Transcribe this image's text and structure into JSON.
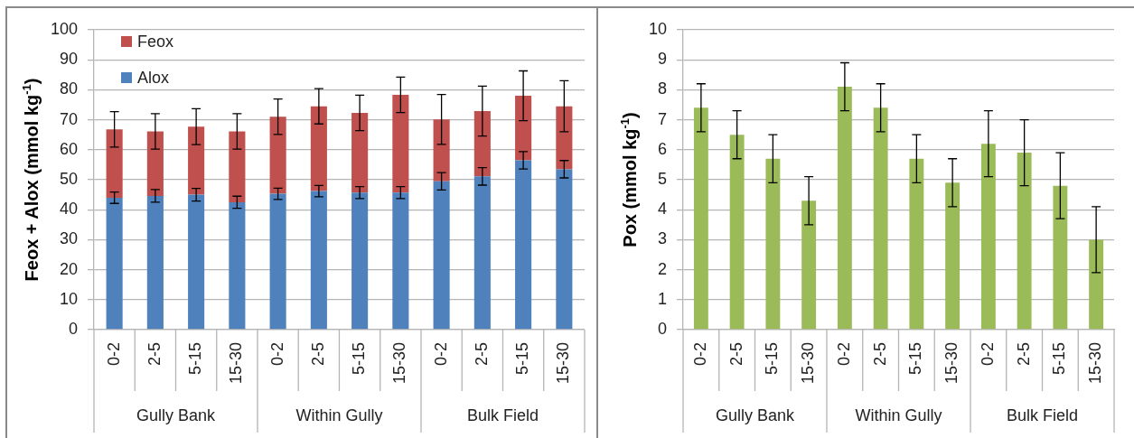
{
  "chart_data": [
    {
      "type": "bar",
      "ylabel": "Feox + Alox (mmol kg$^{-1}$)",
      "categories": [
        "0-2",
        "2-5",
        "5-15",
        "15-30",
        "0-2",
        "2-5",
        "5-15",
        "15-30",
        "0-2",
        "2-5",
        "5-15",
        "15-30"
      ],
      "series": [
        {
          "name": "Alox",
          "color": "#4f81bd",
          "values": [
            44.0,
            44.6,
            45.0,
            42.5,
            45.3,
            46.2,
            45.7,
            45.7,
            49.5,
            51.1,
            56.5,
            53.5
          ],
          "errors": [
            1.9,
            2.1,
            2.1,
            2.0,
            1.9,
            1.9,
            2.0,
            2.0,
            2.9,
            2.9,
            2.9,
            2.9
          ]
        },
        {
          "name": "Feox",
          "color": "#c0504d",
          "values": [
            22.8,
            21.5,
            22.7,
            23.6,
            25.7,
            28.3,
            26.6,
            32.6,
            20.6,
            21.8,
            21.5,
            21.0
          ],
          "errors": [
            5.9,
            5.9,
            6.0,
            5.9,
            5.9,
            5.9,
            5.9,
            5.9,
            8.3,
            8.3,
            8.3,
            8.5
          ]
        }
      ],
      "stacked": true,
      "ylim": [
        0,
        100
      ],
      "yticks": [
        0,
        10,
        20,
        30,
        40,
        50,
        60,
        70,
        80,
        90,
        100
      ],
      "grid": "y",
      "legend": "top left",
      "annotations": [
        "Gully Bank",
        "Within Gully",
        "Bulk Field"
      ]
    },
    {
      "type": "bar",
      "ylabel": "Pox (mmol kg$^{-1}$)",
      "categories": [
        "0-2",
        "2-5",
        "5-15",
        "15-30",
        "0-2",
        "2-5",
        "5-15",
        "15-30",
        "0-2",
        "2-5",
        "5-15",
        "15-30"
      ],
      "values": [
        7.4,
        6.5,
        5.7,
        4.3,
        8.1,
        7.4,
        5.7,
        4.9,
        6.2,
        5.9,
        4.8,
        3.0
      ],
      "color": "#9bbb59",
      "errors": [
        0.8,
        0.8,
        0.8,
        0.8,
        0.8,
        0.8,
        0.8,
        0.8,
        1.1,
        1.1,
        1.1,
        1.1
      ],
      "ylim": [
        0,
        10
      ],
      "yticks": [
        0,
        1,
        2,
        3,
        4,
        5,
        6,
        7,
        8,
        9,
        10
      ],
      "grid": "y",
      "annotations": [
        "Gully Bank",
        "Within Gully",
        "Bulk Field"
      ]
    }
  ]
}
